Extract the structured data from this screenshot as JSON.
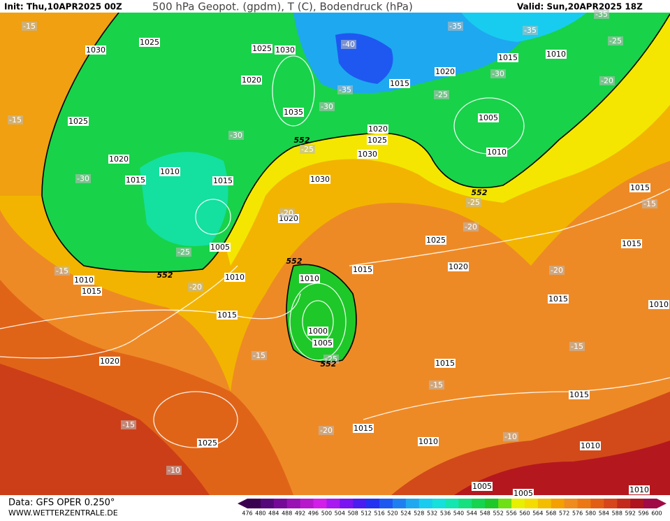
{
  "header": {
    "init": "Init: Thu,10APR2025 00Z",
    "title": "500 hPa Geopot. (gpdm), T (C), Bodendruck (hPa)",
    "valid": "Valid: Sun,20APR2025 18Z"
  },
  "footer": {
    "data": "Data: GFS OPER 0.250°",
    "site": "WWW.WETTERZENTRALE.DE"
  },
  "colorbar": {
    "labels": [
      476,
      480,
      484,
      488,
      492,
      496,
      500,
      504,
      508,
      512,
      516,
      520,
      524,
      528,
      532,
      536,
      540,
      544,
      548,
      552,
      556,
      560,
      564,
      568,
      572,
      576,
      580,
      584,
      588,
      592,
      596,
      600
    ],
    "colors": [
      "#3a0050",
      "#55087a",
      "#760a98",
      "#9812b4",
      "#b818cc",
      "#d21ee8",
      "#a818f0",
      "#7a14f0",
      "#4a1cf0",
      "#2232f0",
      "#1e58f0",
      "#1e80f0",
      "#1ea8f0",
      "#18ccf0",
      "#14e0dc",
      "#14e6b0",
      "#14e080",
      "#14d450",
      "#1ec828",
      "#6ee014",
      "#e6f000",
      "#f4dc00",
      "#f4be00",
      "#f4a000",
      "#f08c1e",
      "#ec7814",
      "#e25e14",
      "#d6461a",
      "#c42a1a",
      "#b0141e",
      "#a00a46"
    ]
  },
  "map_labels": {
    "pressure": [
      "1030",
      "1025",
      "1025",
      "1030",
      "1020",
      "1035",
      "1025",
      "1020",
      "1010",
      "1015",
      "1015",
      "1030",
      "1020",
      "1005",
      "1010",
      "1015",
      "1010",
      "1010",
      "1015",
      "1020",
      "1025",
      "1015",
      "1000",
      "1005",
      "1020",
      "1015",
      "1025",
      "1015",
      "1010",
      "1015",
      "1010",
      "1005",
      "1005",
      "1010",
      "1015",
      "1015",
      "1015",
      "1010",
      "1005",
      "1015",
      "1010",
      "1020",
      "1015",
      "1020",
      "1025",
      "1030",
      "1010"
    ],
    "temperature": [
      "-15",
      "-15",
      "-30",
      "-25",
      "-20",
      "-15",
      "-40",
      "-35",
      "-30",
      "-30",
      "-25",
      "-20",
      "-25",
      "-15",
      "-15",
      "-20",
      "-15",
      "-10",
      "-10",
      "-15",
      "-20",
      "-20",
      "-25",
      "-25",
      "-30",
      "-35",
      "-35",
      "-35",
      "-25",
      "-20",
      "-15"
    ],
    "height": [
      "552",
      "552",
      "552",
      "552",
      "552"
    ]
  }
}
